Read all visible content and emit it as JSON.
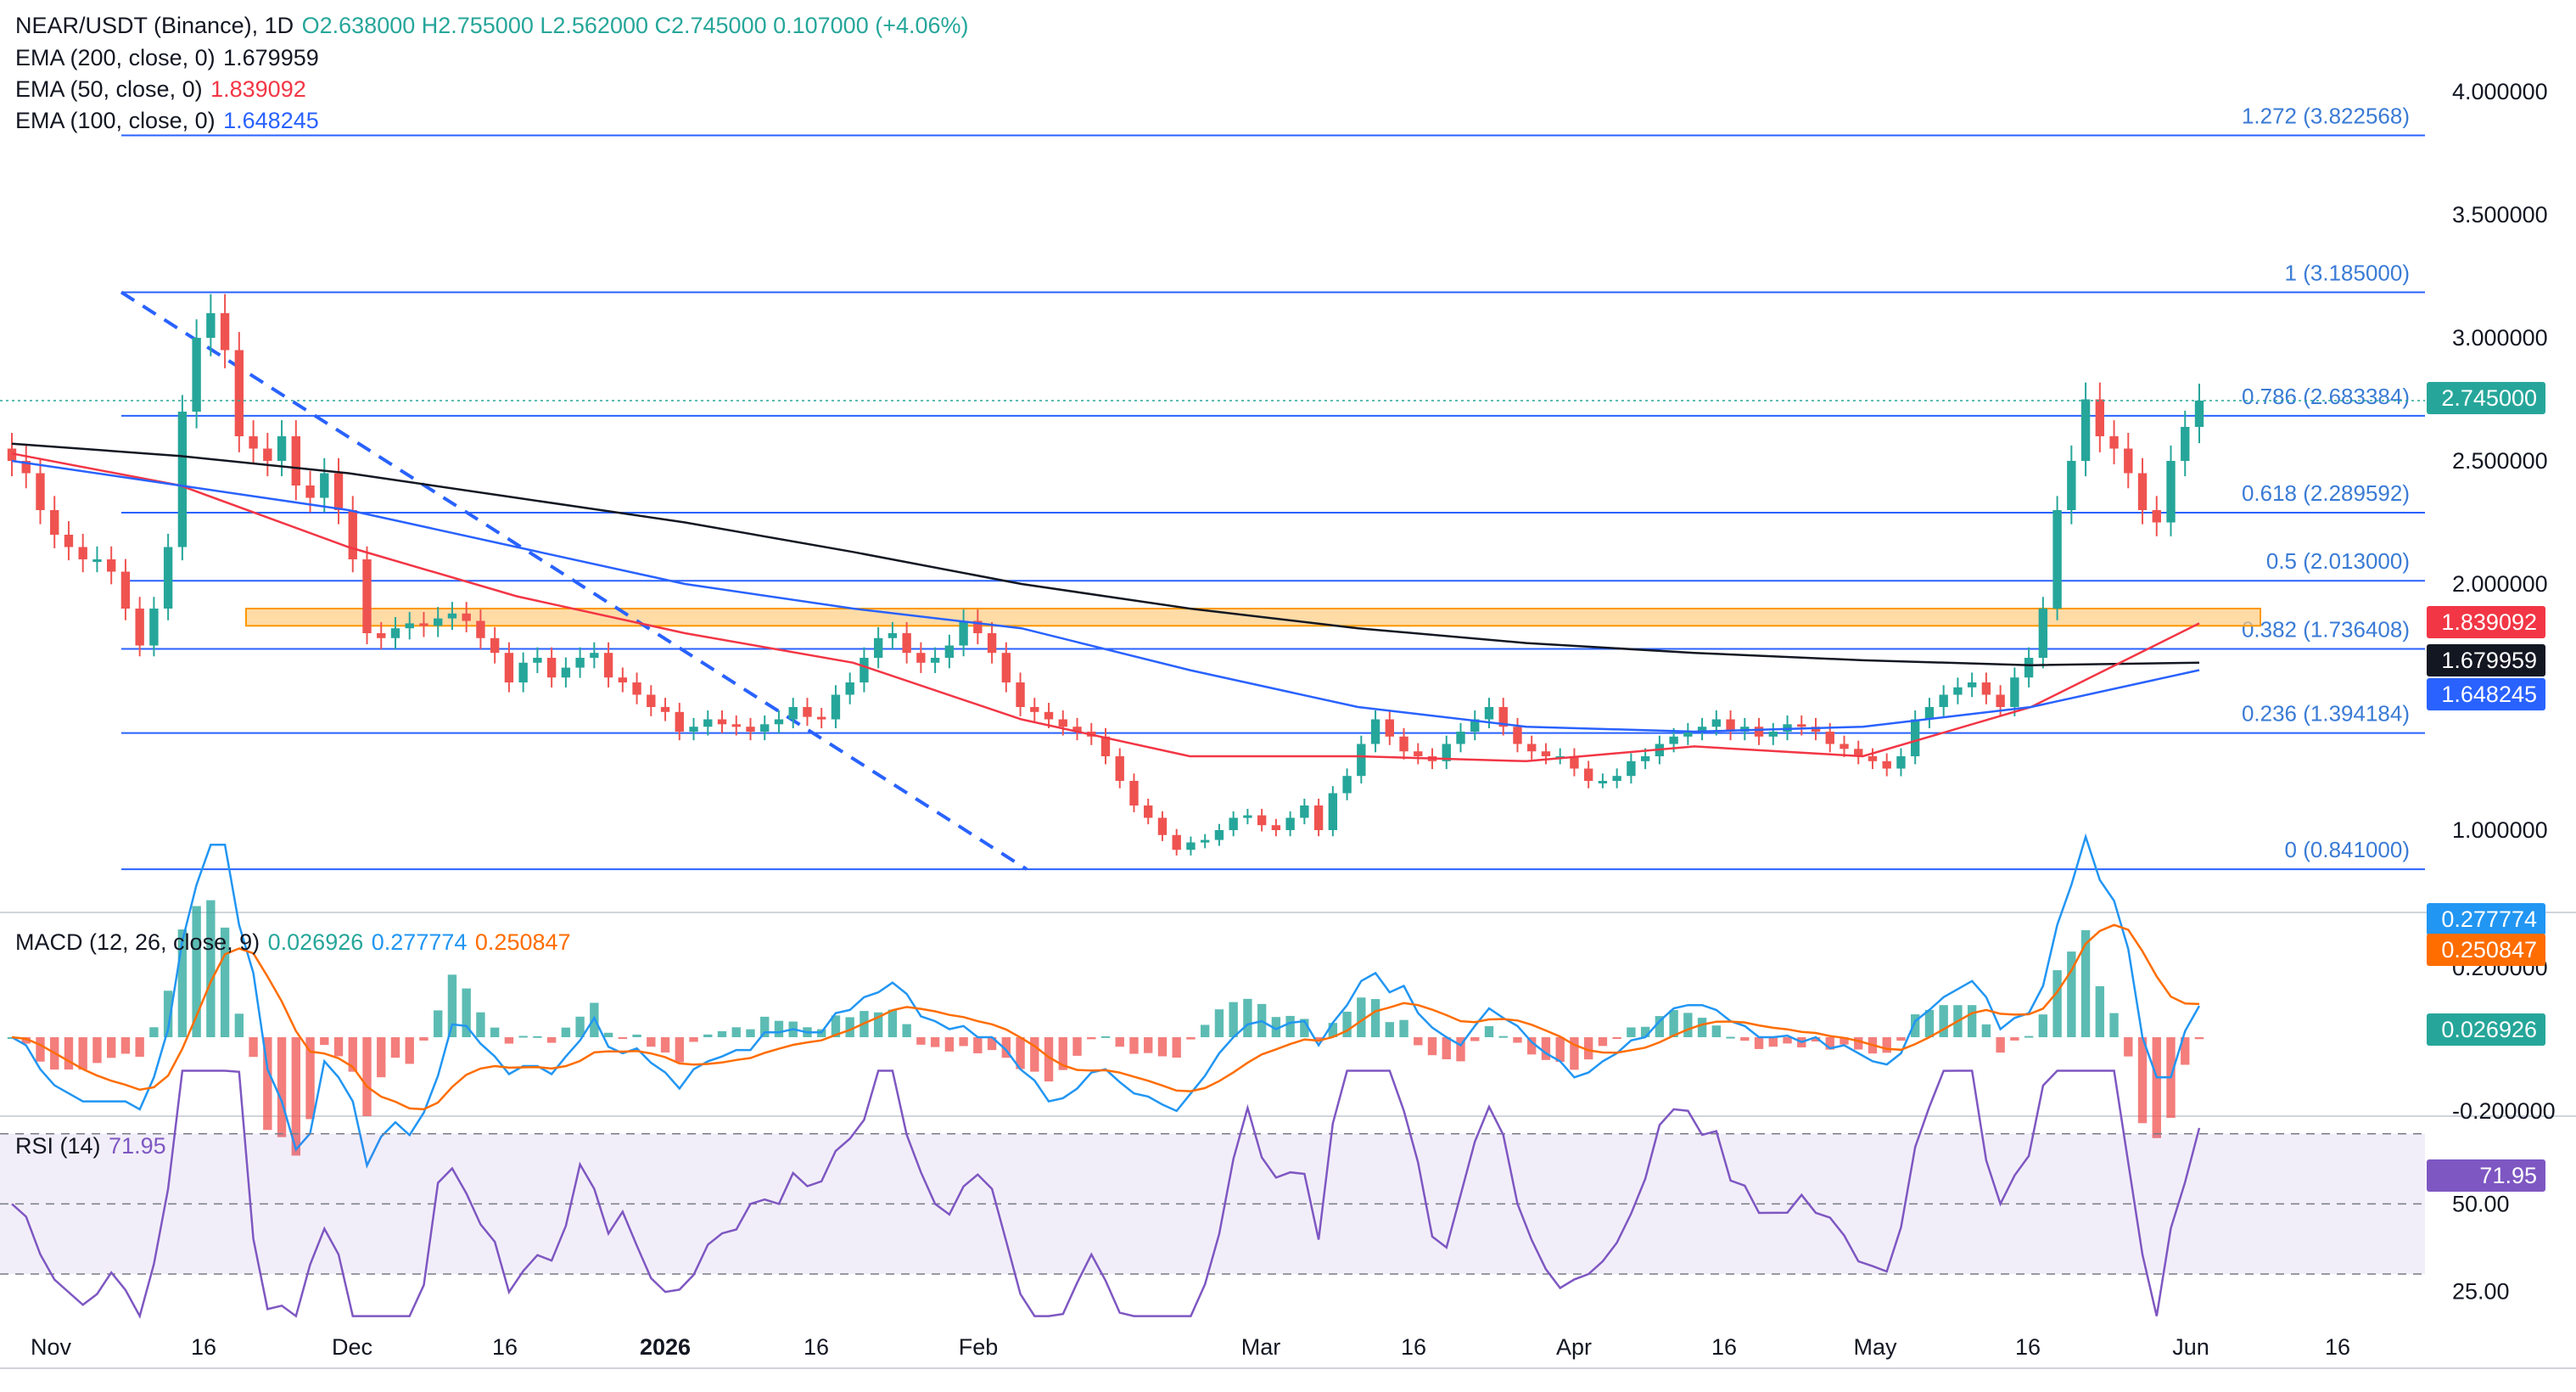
{
  "header": {
    "symbol": "NEAR/USDT (Binance), 1D",
    "ohlc_text": "O2.638000 H2.755000 L2.562000 C2.745000 0.107000 (+4.06%)"
  },
  "indicators": [
    {
      "label": "EMA (200, close, 0)",
      "value": "1.679959",
      "color": "#131722"
    },
    {
      "label": "EMA (50, close, 0)",
      "value": "1.839092",
      "color": "#f23645"
    },
    {
      "label": "EMA (100, close, 0)",
      "value": "1.648245",
      "color": "#2962ff"
    }
  ],
  "macd": {
    "label": "MACD (12, 26, close, 9)",
    "hist": "0.026926",
    "macd": "0.277774",
    "signal": "0.250847",
    "axis_ticks": [
      "0.200000",
      "-0.200000"
    ]
  },
  "rsi": {
    "label": "RSI (14)",
    "value": "71.95",
    "axis_ticks": [
      "50.00",
      "25.00"
    ]
  },
  "colors": {
    "up": "#26a69a",
    "down": "#ef5350",
    "ema200": "#131722",
    "ema50": "#f23645",
    "ema100": "#2962ff",
    "fib": "#2962ff",
    "fib_text": "#3a7bd5",
    "zone": "#ffcc80",
    "macd_line": "#2196f3",
    "signal_line": "#ff6d00",
    "rsi_line": "#7e57c2"
  },
  "chart_data": {
    "type": "candlestick",
    "x_ticks": [
      "Nov",
      "16",
      "Dec",
      "16",
      "2026",
      "16",
      "Feb",
      "Mar",
      "16",
      "Apr",
      "16",
      "May",
      "16",
      "Jun",
      "16"
    ],
    "y_ticks": [
      "4.000000",
      "3.500000",
      "3.000000",
      "2.500000",
      "2.000000",
      "1.000000"
    ],
    "price_labels": {
      "last": "2.745000",
      "ema50": "1.839092",
      "ema200": "1.679959",
      "ema100": "1.648245",
      "macd": "0.277774",
      "signal": "0.250847",
      "hist": "0.026926",
      "rsi": "71.95"
    },
    "fibonacci": [
      {
        "level": "1.272",
        "price": 3.822568,
        "label": "1.272 (3.822568)"
      },
      {
        "level": "1",
        "price": 3.185,
        "label": "1 (3.185000)"
      },
      {
        "level": "0.786",
        "price": 2.683384,
        "label": "0.786 (2.683384)"
      },
      {
        "level": "0.618",
        "price": 2.289592,
        "label": "0.618 (2.289592)"
      },
      {
        "level": "0.5",
        "price": 2.013,
        "label": "0.5 (2.013000)"
      },
      {
        "level": "0.382",
        "price": 1.736408,
        "label": "0.382 (1.736408)"
      },
      {
        "level": "0.236",
        "price": 1.394184,
        "label": "0.236 (1.394184)"
      },
      {
        "level": "0",
        "price": 0.841,
        "label": "0 (0.841000)"
      }
    ],
    "zone": [
      1.83,
      1.9
    ],
    "candles_close": [
      2.5,
      2.45,
      2.3,
      2.2,
      2.15,
      2.1,
      2.1,
      2.05,
      1.9,
      1.75,
      1.9,
      2.15,
      2.7,
      3.0,
      3.1,
      2.95,
      2.6,
      2.55,
      2.5,
      2.6,
      2.4,
      2.35,
      2.45,
      2.3,
      2.1,
      1.8,
      1.78,
      1.82,
      1.84,
      1.83,
      1.86,
      1.88,
      1.85,
      1.78,
      1.72,
      1.6,
      1.68,
      1.7,
      1.62,
      1.66,
      1.7,
      1.72,
      1.62,
      1.6,
      1.55,
      1.5,
      1.48,
      1.4,
      1.42,
      1.45,
      1.43,
      1.42,
      1.4,
      1.43,
      1.45,
      1.5,
      1.46,
      1.45,
      1.55,
      1.6,
      1.7,
      1.78,
      1.8,
      1.72,
      1.68,
      1.7,
      1.75,
      1.85,
      1.8,
      1.72,
      1.6,
      1.5,
      1.48,
      1.45,
      1.42,
      1.4,
      1.38,
      1.3,
      1.2,
      1.1,
      1.05,
      0.98,
      0.92,
      0.95,
      0.96,
      1.0,
      1.05,
      1.06,
      1.02,
      1.0,
      1.05,
      1.1,
      1.0,
      1.15,
      1.22,
      1.35,
      1.45,
      1.38,
      1.32,
      1.3,
      1.28,
      1.35,
      1.4,
      1.45,
      1.5,
      1.42,
      1.35,
      1.32,
      1.3,
      1.3,
      1.25,
      1.2,
      1.2,
      1.22,
      1.28,
      1.3,
      1.35,
      1.38,
      1.4,
      1.42,
      1.45,
      1.4,
      1.42,
      1.38,
      1.4,
      1.43,
      1.42,
      1.4,
      1.35,
      1.33,
      1.3,
      1.28,
      1.25,
      1.3,
      1.45,
      1.5,
      1.55,
      1.58,
      1.6,
      1.55,
      1.5,
      1.62,
      1.7,
      1.9,
      2.3,
      2.5,
      2.75,
      2.6,
      2.55,
      2.45,
      2.3,
      2.25,
      2.5,
      2.638,
      2.745
    ],
    "ema200": [
      2.57,
      2.52,
      2.45,
      2.35,
      2.25,
      2.13,
      2.0,
      1.9,
      1.82,
      1.76,
      1.72,
      1.69,
      1.67,
      1.68
    ],
    "ema50": [
      2.53,
      2.4,
      2.15,
      1.95,
      1.8,
      1.68,
      1.45,
      1.3,
      1.3,
      1.28,
      1.34,
      1.3,
      1.5,
      1.84
    ],
    "ema100": [
      2.5,
      2.4,
      2.3,
      2.15,
      2.0,
      1.9,
      1.82,
      1.65,
      1.5,
      1.42,
      1.4,
      1.42,
      1.5,
      1.65
    ]
  }
}
